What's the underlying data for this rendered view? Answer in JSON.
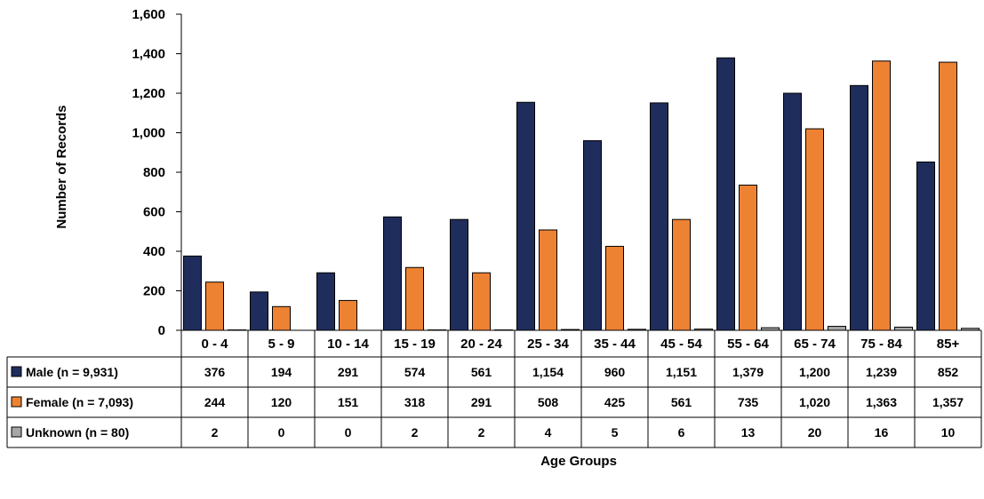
{
  "chart_data": {
    "type": "bar",
    "categories": [
      "0 - 4",
      "5 - 9",
      "10 - 14",
      "15 - 19",
      "20 - 24",
      "25 - 34",
      "35 - 44",
      "45 - 54",
      "55 - 64",
      "65 - 74",
      "75 - 84",
      "85+"
    ],
    "series": [
      {
        "name": "Male (n = 9,931)",
        "color": "#1f2d5c",
        "values": [
          376,
          194,
          291,
          574,
          561,
          1154,
          960,
          1151,
          1379,
          1200,
          1239,
          852
        ],
        "labels": [
          "376",
          "194",
          "291",
          "574",
          "561",
          "1,154",
          "960",
          "1,151",
          "1,379",
          "1,200",
          "1,239",
          "852"
        ]
      },
      {
        "name": "Female (n = 7,093)",
        "color": "#ee8233",
        "values": [
          244,
          120,
          151,
          318,
          291,
          508,
          425,
          561,
          735,
          1020,
          1363,
          1357
        ],
        "labels": [
          "244",
          "120",
          "151",
          "318",
          "291",
          "508",
          "425",
          "561",
          "735",
          "1,020",
          "1,363",
          "1,357"
        ]
      },
      {
        "name": "Unknown (n = 80)",
        "color": "#a6a6a6",
        "values": [
          2,
          0,
          0,
          2,
          2,
          4,
          5,
          6,
          13,
          20,
          16,
          10
        ],
        "labels": [
          "2",
          "0",
          "0",
          "2",
          "2",
          "4",
          "5",
          "6",
          "13",
          "20",
          "16",
          "10"
        ]
      }
    ],
    "ylabel": "Number of Records",
    "xlabel": "Age Groups",
    "ylim": [
      0,
      1600
    ],
    "yticks": [
      "0",
      "200",
      "400",
      "600",
      "800",
      "1,000",
      "1,200",
      "1,400",
      "1,600"
    ],
    "grid": false,
    "legend": "data-table"
  }
}
